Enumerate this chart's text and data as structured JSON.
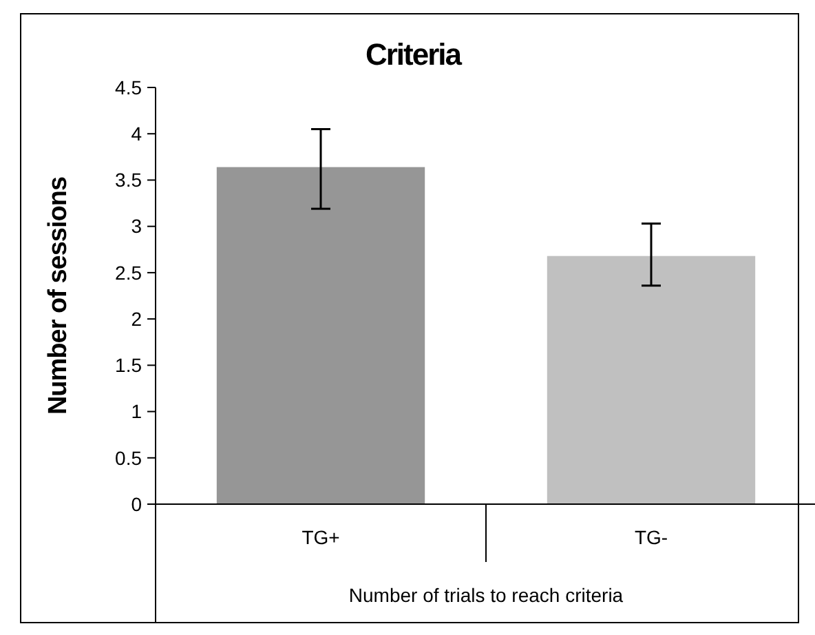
{
  "chart_data": {
    "type": "bar",
    "title": "Criteria",
    "xlabel": "Number of trials to reach criteria",
    "ylabel": "Number of sessions",
    "categories": [
      "TG+",
      "TG-"
    ],
    "values": [
      3.64,
      2.68
    ],
    "colors": [
      "#969696",
      "#c0c0c0"
    ],
    "errors": [
      [
        3.19,
        4.05
      ],
      [
        2.36,
        3.03
      ]
    ],
    "ylim": [
      0,
      4.5
    ],
    "yticks": [
      0,
      0.5,
      1,
      1.5,
      2,
      2.5,
      3,
      3.5,
      4,
      4.5
    ],
    "grid": false
  }
}
